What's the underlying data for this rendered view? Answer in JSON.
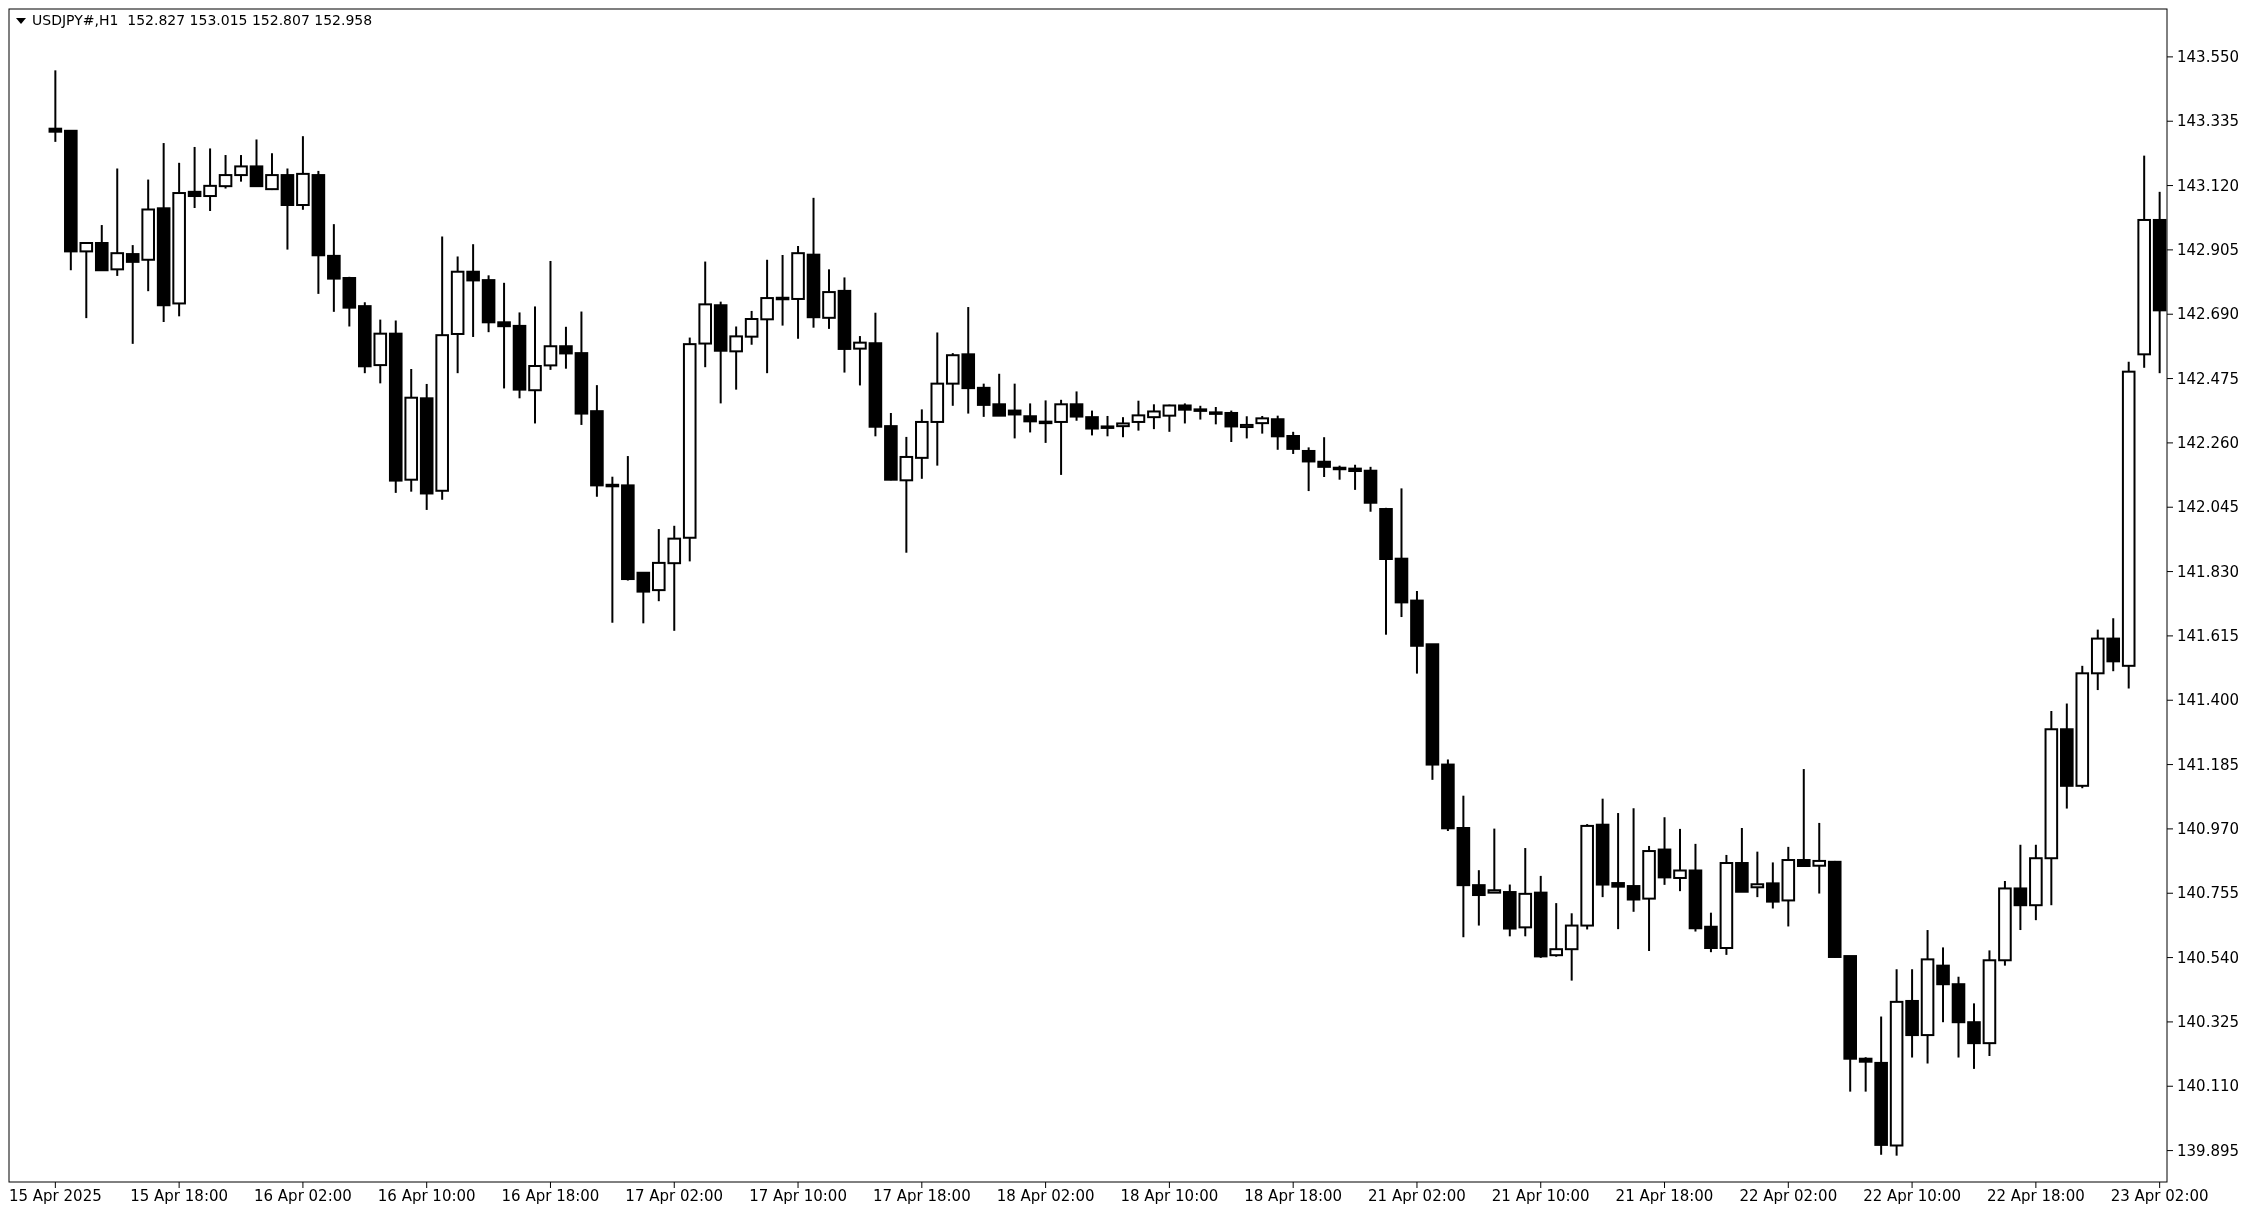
{
  "chart_data": {
    "type": "candlestick",
    "title": "USDJPY#,H1  152.827 153.015 152.807 152.958",
    "categories": [
      "15 Apr 2025",
      null,
      null,
      null,
      null,
      null,
      null,
      null,
      "15 Apr 18:00",
      null,
      null,
      null,
      null,
      null,
      null,
      null,
      "16 Apr 02:00",
      null,
      null,
      null,
      null,
      null,
      null,
      null,
      "16 Apr 10:00",
      null,
      null,
      null,
      null,
      null,
      null,
      null,
      "16 Apr 18:00",
      null,
      null,
      null,
      null,
      null,
      null,
      null,
      "17 Apr 02:00",
      null,
      null,
      null,
      null,
      null,
      null,
      null,
      "17 Apr 10:00",
      null,
      null,
      null,
      null,
      null,
      null,
      null,
      "17 Apr 18:00",
      null,
      null,
      null,
      null,
      null,
      null,
      null,
      "18 Apr 02:00",
      null,
      null,
      null,
      null,
      null,
      null,
      null,
      "18 Apr 10:00",
      null,
      null,
      null,
      null,
      null,
      null,
      null,
      "18 Apr 18:00",
      null,
      null,
      null,
      null,
      null,
      null,
      null,
      "21 Apr 02:00",
      null,
      null,
      null,
      null,
      null,
      null,
      null,
      "21 Apr 10:00",
      null,
      null,
      null,
      null,
      null,
      null,
      null,
      "21 Apr 18:00",
      null,
      null,
      null,
      null,
      null,
      null,
      null,
      "22 Apr 02:00",
      null,
      null,
      null,
      null,
      null,
      null,
      null,
      "22 Apr 10:00",
      null,
      null,
      null,
      null,
      null,
      null,
      null,
      "22 Apr 18:00",
      null,
      null,
      null,
      null,
      null,
      null,
      null,
      "23 Apr 02:00"
    ],
    "ohlc": [
      [
        143.31,
        143.505,
        143.266,
        143.3
      ],
      [
        143.303,
        143.305,
        142.837,
        142.9
      ],
      [
        142.9,
        142.93,
        142.677,
        142.928
      ],
      [
        142.928,
        142.988,
        142.835,
        142.837
      ],
      [
        142.84,
        143.177,
        142.818,
        142.894
      ],
      [
        142.891,
        142.921,
        142.591,
        142.865
      ],
      [
        142.872,
        143.14,
        142.767,
        143.04
      ],
      [
        143.044,
        143.262,
        142.664,
        142.72
      ],
      [
        142.726,
        143.196,
        142.683,
        143.095
      ],
      [
        143.099,
        143.249,
        143.045,
        143.085
      ],
      [
        143.085,
        143.244,
        143.035,
        143.119
      ],
      [
        143.118,
        143.222,
        143.11,
        143.155
      ],
      [
        143.155,
        143.222,
        143.133,
        143.184
      ],
      [
        143.184,
        143.274,
        143.118,
        143.118
      ],
      [
        143.108,
        143.228,
        143.105,
        143.155
      ],
      [
        143.155,
        143.177,
        142.906,
        143.055
      ],
      [
        143.055,
        143.285,
        143.039,
        143.159
      ],
      [
        143.155,
        143.169,
        142.758,
        142.887
      ],
      [
        142.885,
        142.991,
        142.698,
        142.809
      ],
      [
        142.811,
        142.815,
        142.649,
        142.712
      ],
      [
        142.717,
        142.73,
        142.493,
        142.516
      ],
      [
        142.52,
        142.672,
        142.459,
        142.625
      ],
      [
        142.625,
        142.669,
        142.093,
        142.134
      ],
      [
        142.137,
        142.507,
        142.097,
        142.411
      ],
      [
        142.409,
        142.457,
        142.036,
        142.091
      ],
      [
        142.1,
        142.95,
        142.07,
        142.62
      ],
      [
        142.624,
        142.883,
        142.493,
        142.832
      ],
      [
        142.832,
        142.924,
        142.614,
        142.803
      ],
      [
        142.804,
        142.82,
        142.63,
        142.663
      ],
      [
        142.663,
        142.795,
        142.442,
        142.65
      ],
      [
        142.651,
        142.696,
        142.409,
        142.438
      ],
      [
        142.436,
        142.716,
        142.325,
        142.517
      ],
      [
        142.519,
        142.868,
        142.504,
        142.583
      ],
      [
        142.583,
        142.648,
        142.508,
        142.559
      ],
      [
        142.56,
        142.699,
        142.32,
        142.358
      ],
      [
        142.366,
        142.453,
        142.08,
        142.118
      ],
      [
        142.12,
        142.147,
        141.659,
        142.115
      ],
      [
        142.118,
        142.216,
        141.8,
        141.805
      ],
      [
        141.826,
        141.826,
        141.657,
        141.763
      ],
      [
        141.768,
        141.972,
        141.731,
        141.859
      ],
      [
        141.858,
        141.983,
        141.632,
        141.94
      ],
      [
        141.943,
        142.612,
        141.864,
        142.59
      ],
      [
        142.592,
        142.866,
        142.513,
        142.723
      ],
      [
        142.72,
        142.732,
        142.392,
        142.568
      ],
      [
        142.566,
        142.649,
        142.438,
        142.616
      ],
      [
        142.615,
        142.701,
        142.588,
        142.674
      ],
      [
        142.673,
        142.872,
        142.493,
        142.744
      ],
      [
        142.741,
        142.888,
        142.652,
        142.745
      ],
      [
        142.741,
        142.918,
        142.608,
        142.894
      ],
      [
        142.889,
        143.079,
        142.645,
        142.68
      ],
      [
        142.678,
        142.84,
        142.641,
        142.764
      ],
      [
        142.768,
        142.813,
        142.495,
        142.574
      ],
      [
        142.575,
        142.617,
        142.452,
        142.595
      ],
      [
        142.593,
        142.695,
        142.282,
        142.314
      ],
      [
        142.316,
        142.36,
        142.135,
        142.137
      ],
      [
        142.135,
        142.28,
        141.893,
        142.213
      ],
      [
        142.21,
        142.372,
        142.14,
        142.33
      ],
      [
        142.33,
        142.629,
        142.184,
        142.458
      ],
      [
        142.458,
        142.56,
        142.384,
        142.553
      ],
      [
        142.556,
        142.714,
        142.358,
        142.443
      ],
      [
        142.444,
        142.458,
        142.347,
        142.387
      ],
      [
        142.389,
        142.491,
        142.351,
        142.351
      ],
      [
        142.368,
        142.458,
        142.275,
        142.355
      ],
      [
        142.349,
        142.392,
        142.295,
        142.332
      ],
      [
        142.331,
        142.402,
        142.26,
        142.33
      ],
      [
        142.33,
        142.404,
        142.153,
        142.389
      ],
      [
        142.389,
        142.432,
        142.334,
        142.348
      ],
      [
        142.346,
        142.368,
        142.285,
        142.308
      ],
      [
        142.315,
        142.35,
        142.282,
        142.313
      ],
      [
        142.316,
        142.346,
        142.279,
        142.325
      ],
      [
        142.33,
        142.401,
        142.301,
        142.352
      ],
      [
        142.346,
        142.389,
        142.306,
        142.365
      ],
      [
        142.351,
        142.388,
        142.297,
        142.385
      ],
      [
        142.385,
        142.392,
        142.325,
        142.371
      ],
      [
        142.372,
        142.384,
        142.338,
        142.37
      ],
      [
        142.362,
        142.38,
        142.322,
        142.36
      ],
      [
        142.36,
        142.368,
        142.263,
        142.315
      ],
      [
        142.313,
        142.349,
        142.275,
        142.32
      ],
      [
        142.326,
        142.35,
        142.291,
        142.342
      ],
      [
        142.339,
        142.351,
        142.237,
        142.282
      ],
      [
        142.283,
        142.297,
        142.223,
        142.24
      ],
      [
        142.233,
        142.245,
        142.099,
        142.198
      ],
      [
        142.197,
        142.279,
        142.146,
        142.18
      ],
      [
        142.177,
        142.184,
        142.137,
        142.176
      ],
      [
        142.174,
        142.187,
        142.103,
        142.166
      ],
      [
        142.167,
        142.18,
        142.03,
        142.06
      ],
      [
        142.039,
        142.043,
        141.619,
        141.872
      ],
      [
        141.873,
        142.108,
        141.678,
        141.727
      ],
      [
        141.733,
        141.765,
        141.489,
        141.582
      ],
      [
        141.587,
        141.587,
        141.134,
        141.185
      ],
      [
        141.185,
        141.202,
        140.963,
        140.972
      ],
      [
        140.973,
        141.081,
        140.608,
        140.782
      ],
      [
        140.782,
        140.832,
        140.647,
        140.749
      ],
      [
        140.757,
        140.971,
        140.757,
        140.765
      ],
      [
        140.759,
        140.784,
        140.611,
        140.637
      ],
      [
        140.641,
        140.906,
        140.611,
        140.753
      ],
      [
        140.757,
        140.813,
        140.539,
        140.544
      ],
      [
        140.548,
        140.722,
        140.543,
        140.568
      ],
      [
        140.568,
        140.688,
        140.463,
        140.647
      ],
      [
        140.647,
        140.986,
        140.634,
        140.98
      ],
      [
        140.984,
        141.071,
        140.742,
        140.784
      ],
      [
        140.789,
        141.023,
        140.635,
        140.777
      ],
      [
        140.779,
        141.039,
        140.693,
        140.734
      ],
      [
        140.737,
        140.913,
        140.562,
        140.896
      ],
      [
        140.901,
        141.009,
        140.783,
        140.808
      ],
      [
        140.806,
        140.97,
        140.762,
        140.831
      ],
      [
        140.831,
        140.92,
        140.627,
        140.638
      ],
      [
        140.643,
        140.69,
        140.558,
        140.572
      ],
      [
        140.572,
        140.883,
        140.549,
        140.856
      ],
      [
        140.856,
        140.973,
        140.76,
        140.76
      ],
      [
        140.775,
        140.894,
        140.742,
        140.785
      ],
      [
        140.788,
        140.858,
        140.704,
        140.727
      ],
      [
        140.731,
        140.91,
        140.644,
        140.866
      ],
      [
        140.866,
        141.17,
        140.844,
        140.846
      ],
      [
        140.847,
        140.99,
        140.754,
        140.863
      ],
      [
        140.86,
        140.863,
        140.54,
        140.542
      ],
      [
        140.545,
        140.545,
        140.092,
        140.202
      ],
      [
        140.202,
        140.207,
        140.092,
        140.192
      ],
      [
        140.188,
        140.343,
        139.881,
        139.914
      ],
      [
        139.912,
        140.501,
        139.878,
        140.392
      ],
      [
        140.395,
        140.501,
        140.206,
        140.281
      ],
      [
        140.281,
        140.632,
        140.186,
        140.534
      ],
      [
        140.513,
        140.574,
        140.324,
        140.451
      ],
      [
        140.451,
        140.476,
        140.206,
        140.324
      ],
      [
        140.324,
        140.387,
        140.168,
        140.254
      ],
      [
        140.254,
        140.564,
        140.211,
        140.531
      ],
      [
        140.531,
        140.796,
        140.513,
        140.771
      ],
      [
        140.771,
        140.917,
        140.632,
        140.715
      ],
      [
        140.715,
        140.917,
        140.665,
        140.872
      ],
      [
        140.872,
        141.364,
        140.715,
        141.303
      ],
      [
        141.303,
        141.389,
        141.038,
        141.114
      ],
      [
        141.114,
        141.515,
        141.106,
        141.49
      ],
      [
        141.49,
        141.636,
        141.434,
        141.606
      ],
      [
        141.606,
        141.674,
        141.497,
        141.53
      ],
      [
        141.515,
        142.531,
        141.439,
        142.498
      ],
      [
        142.556,
        143.22,
        142.511,
        143.005
      ],
      [
        143.005,
        143.099,
        142.493,
        142.703
      ]
    ],
    "ylim": [
      139.79,
      143.7
    ],
    "yticks": [
      {
        "value": 143.55,
        "label": "143.550"
      },
      {
        "value": 143.335,
        "label": "143.335"
      },
      {
        "value": 143.12,
        "label": "143.120"
      },
      {
        "value": 142.905,
        "label": "142.905"
      },
      {
        "value": 142.69,
        "label": "142.690"
      },
      {
        "value": 142.475,
        "label": "142.475"
      },
      {
        "value": 142.26,
        "label": "142.260"
      },
      {
        "value": 142.045,
        "label": "142.045"
      },
      {
        "value": 141.83,
        "label": "141.830"
      },
      {
        "value": 141.615,
        "label": "141.615"
      },
      {
        "value": 141.4,
        "label": "141.400"
      },
      {
        "value": 141.185,
        "label": "141.185"
      },
      {
        "value": 140.97,
        "label": "140.970"
      },
      {
        "value": 140.755,
        "label": "140.755"
      },
      {
        "value": 140.54,
        "label": "140.540"
      },
      {
        "value": 140.325,
        "label": "140.325"
      },
      {
        "value": 140.11,
        "label": "140.110"
      },
      {
        "value": 139.895,
        "label": "139.895"
      }
    ],
    "grid": false
  }
}
